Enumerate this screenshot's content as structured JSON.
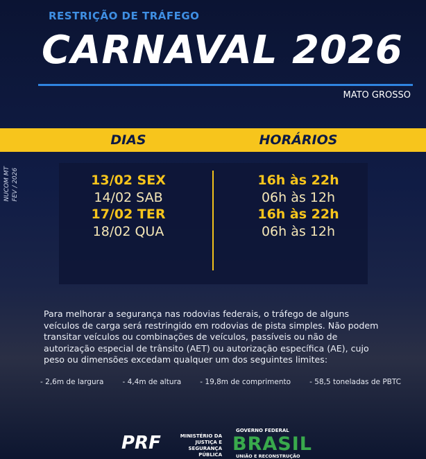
{
  "header": {
    "kicker": "RESTRIÇÃO DE TRÁFEGO",
    "title": "CARNAVAL 2026",
    "region": "MATO GROSSO"
  },
  "side_note": [
    "NUCOM MT",
    "FEV / 2026"
  ],
  "table": {
    "columns": [
      "DIAS",
      "HORÁRIOS"
    ],
    "rows": [
      [
        "13/02 SEX",
        "16h às 22h"
      ],
      [
        "14/02 SAB",
        "06h às 12h"
      ],
      [
        "17/02 TER",
        "16h às 22h"
      ],
      [
        "18/02 QUA",
        "06h às 12h"
      ]
    ]
  },
  "body": "Para melhorar a segurança nas rodovias federais, o tráfego de alguns veículos de carga será restringido em rodovias de pista simples. Não podem transitar veículos ou combinações de veículos, passíveis ou não de autorização especial de trânsito (AET) ou autorização específica (AE), cujo peso ou dimensões excedam qualquer um dos seguintes limites:",
  "limits": [
    "2,6m de largura",
    "4,4m de altura",
    "19,8m de comprimento",
    "58,5 toneladas de PBTC"
  ],
  "footer": {
    "prf": "PRF",
    "ministry": [
      "MINISTÉRIO DA",
      "JUSTIÇA E",
      "SEGURANÇA PÚBLICA"
    ],
    "gov": "GOVERNO FEDERAL",
    "brasil": "BRASIL",
    "slogan": "UNIÃO E RECONSTRUÇÃO"
  }
}
